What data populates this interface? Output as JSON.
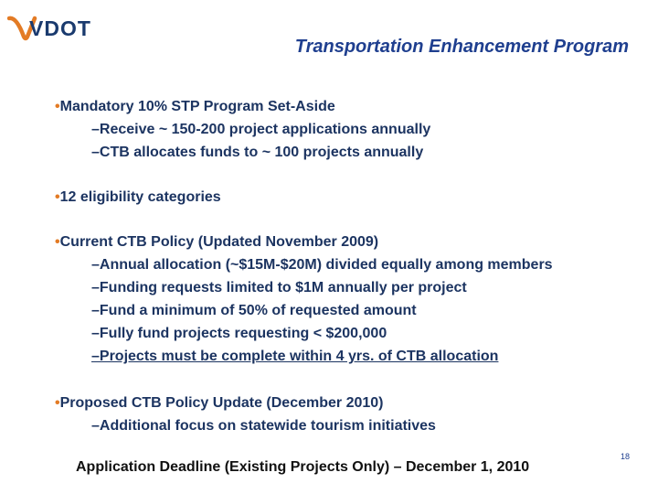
{
  "logo": {
    "text": "VDOT"
  },
  "slide": {
    "title": "Transportation Enhancement Program",
    "sections": [
      {
        "bullet": "Mandatory 10% STP Program Set-Aside",
        "items": [
          "–Receive ~ 150-200 project applications annually",
          "–CTB allocates funds to ~ 100 projects annually"
        ]
      },
      {
        "bullet": "12 eligibility categories",
        "items": []
      },
      {
        "bullet": "Current CTB Policy (Updated November 2009)",
        "items": [
          "–Annual allocation (~$15M-$20M) divided equally among members",
          "–Funding requests limited to $1M annually per project",
          "–Fund a minimum of 50% of requested amount",
          "–Fully fund projects requesting < $200,000",
          "–Projects must be complete within 4 yrs. of CTB allocation"
        ]
      },
      {
        "bullet": "Proposed CTB Policy Update (December 2010)",
        "items": [
          "–Additional focus on statewide tourism initiatives"
        ]
      }
    ],
    "footer": "Application Deadline (Existing Projects Only) – December 1, 2010",
    "page_number": "18"
  },
  "colors": {
    "title": "#1f3f8f",
    "text": "#1c3461",
    "accent": "#e37b25"
  }
}
